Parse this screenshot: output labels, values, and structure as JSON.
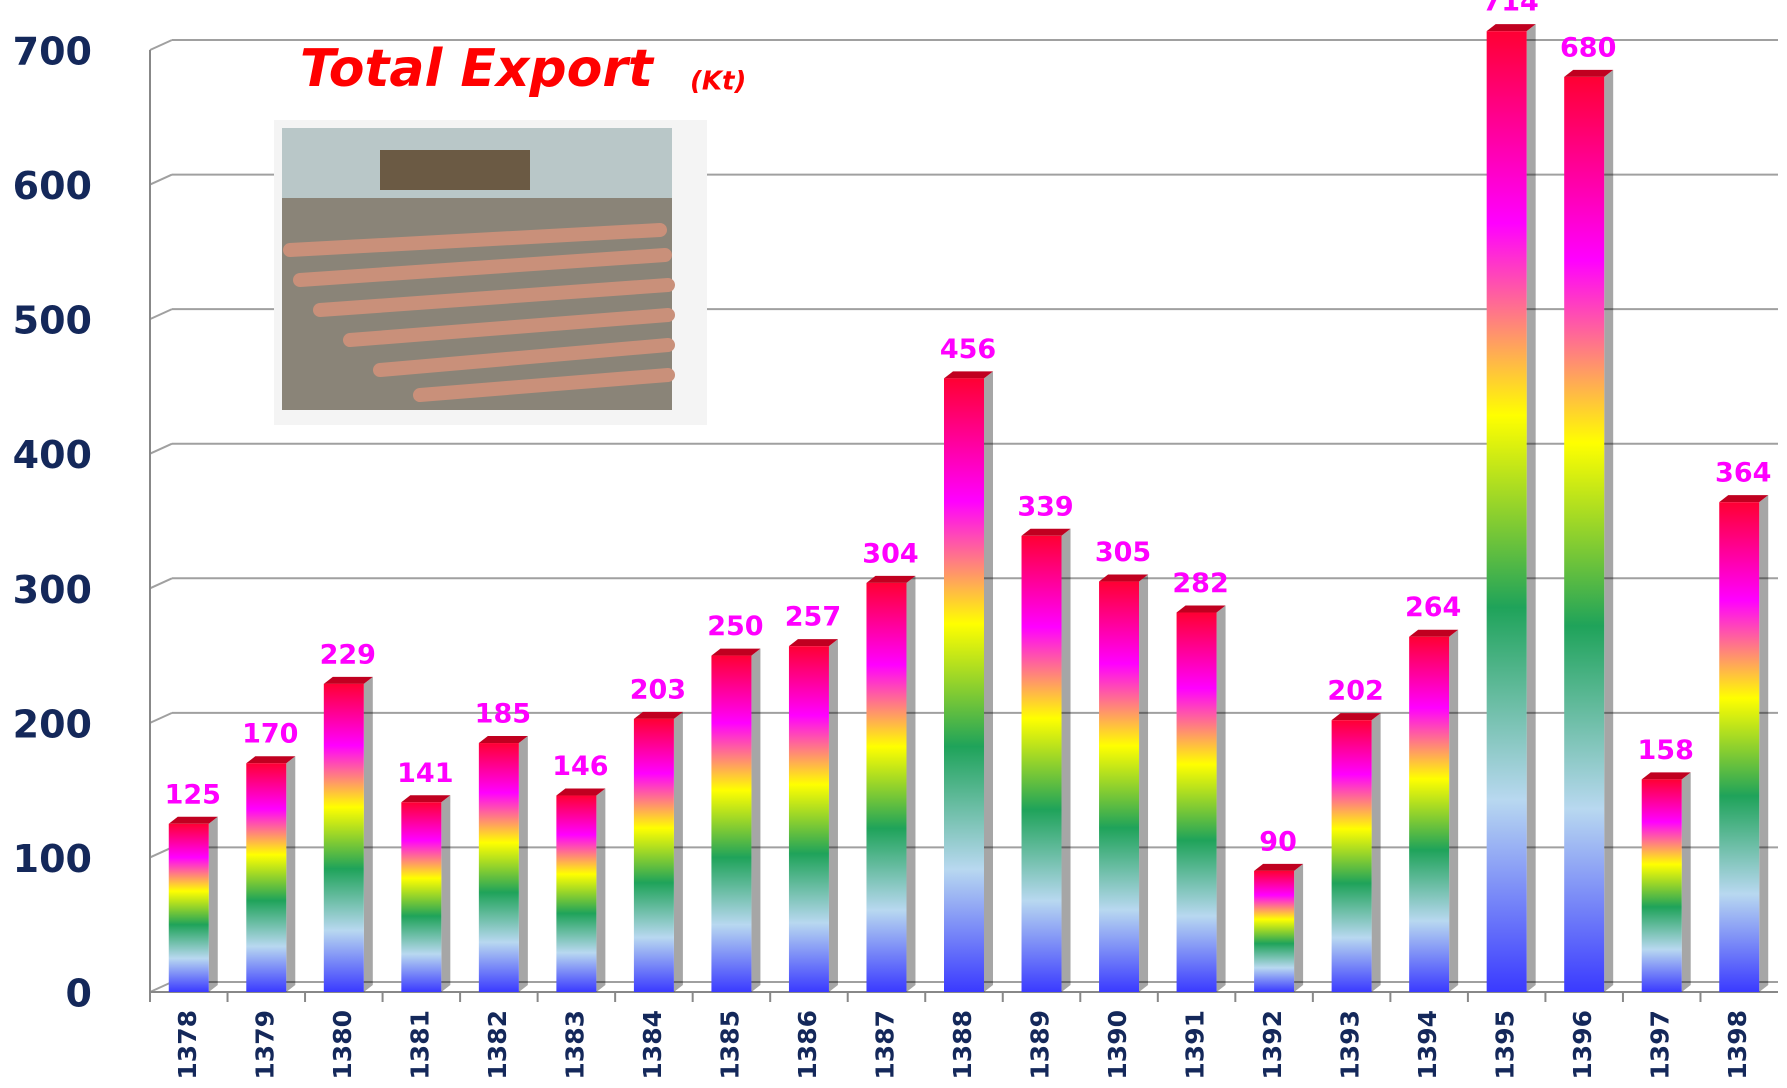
{
  "chart_data": {
    "type": "bar",
    "title": "Total Export",
    "unit": "(Kt)",
    "categories": [
      "1378",
      "1379",
      "1380",
      "1381",
      "1382",
      "1383",
      "1384",
      "1385",
      "1386",
      "1387",
      "1388",
      "1389",
      "1390",
      "1391",
      "1392",
      "1393",
      "1394",
      "1395",
      "1396",
      "1397",
      "1398"
    ],
    "values": [
      125,
      170,
      229,
      141,
      185,
      146,
      203,
      250,
      257,
      304,
      456,
      339,
      305,
      282,
      90,
      202,
      264,
      714,
      680,
      158,
      364
    ],
    "colors": [
      "#3a3aff",
      "#b8d8f0",
      "#1fa35a",
      "#ffff00",
      "#ff00ff",
      "#ff0033"
    ],
    "ylim": [
      0,
      700
    ],
    "yticks": [
      0,
      100,
      200,
      300,
      400,
      500,
      600,
      700
    ],
    "grid": true
  }
}
